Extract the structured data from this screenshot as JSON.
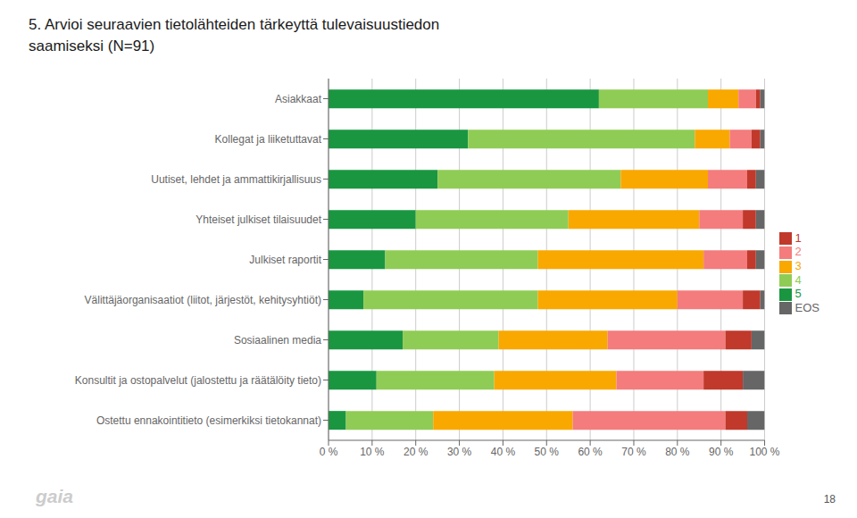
{
  "chart_data": {
    "type": "bar",
    "title": "5. Arvioi seuraavien tietolähteiden tärkeyttä tulevaisuustiedon\nsaamiseksi (N=91)",
    "categories": [
      "Asiakkaat",
      "Kollegat ja liiketuttavat",
      "Uutiset, lehdet ja ammattikirjallisuus",
      "Yhteiset julkiset tilaisuudet",
      "Julkiset raportit",
      "Välittäjäorganisaatiot (liitot, järjestöt, kehitysyhtiöt)",
      "Sosiaalinen media",
      "Konsultit ja ostopalvelut (jalostettu ja räätälöity tieto)",
      "Ostettu ennakointitieto (esimerkiksi tietokannat)"
    ],
    "series": [
      {
        "name": "5",
        "color": "#1a9641",
        "values": [
          62,
          32,
          25,
          20,
          13,
          8,
          17,
          11,
          4
        ]
      },
      {
        "name": "4",
        "color": "#8fcc55",
        "values": [
          25,
          52,
          42,
          35,
          35,
          40,
          22,
          27,
          20
        ]
      },
      {
        "name": "3",
        "color": "#f9a800",
        "values": [
          7,
          8,
          20,
          30,
          38,
          32,
          25,
          28,
          32
        ]
      },
      {
        "name": "2",
        "color": "#f47c7c",
        "values": [
          4,
          5,
          9,
          10,
          10,
          15,
          27,
          20,
          35
        ]
      },
      {
        "name": "1",
        "color": "#c0392b",
        "values": [
          1,
          2,
          2,
          3,
          2,
          4,
          6,
          9,
          5
        ]
      },
      {
        "name": "EOS",
        "color": "#666666",
        "values": [
          1,
          1,
          2,
          2,
          2,
          1,
          3,
          5,
          4
        ]
      }
    ],
    "xlim": [
      0,
      100
    ],
    "xticks": [
      {
        "value": 0,
        "label": "0 %"
      },
      {
        "value": 10,
        "label": "10 %"
      },
      {
        "value": 20,
        "label": "20 %"
      },
      {
        "value": 30,
        "label": "30 %"
      },
      {
        "value": 40,
        "label": "40 %"
      },
      {
        "value": 50,
        "label": "50 %"
      },
      {
        "value": 60,
        "label": "60 %"
      },
      {
        "value": 70,
        "label": "70 %"
      },
      {
        "value": 80,
        "label": "80 %"
      },
      {
        "value": 90,
        "label": "90 %"
      },
      {
        "value": 100,
        "label": "100 %"
      }
    ],
    "grid": true,
    "legend": "right",
    "orientation": "horizontal",
    "stacked": true,
    "annotations": [
      "18",
      "gaia"
    ]
  }
}
